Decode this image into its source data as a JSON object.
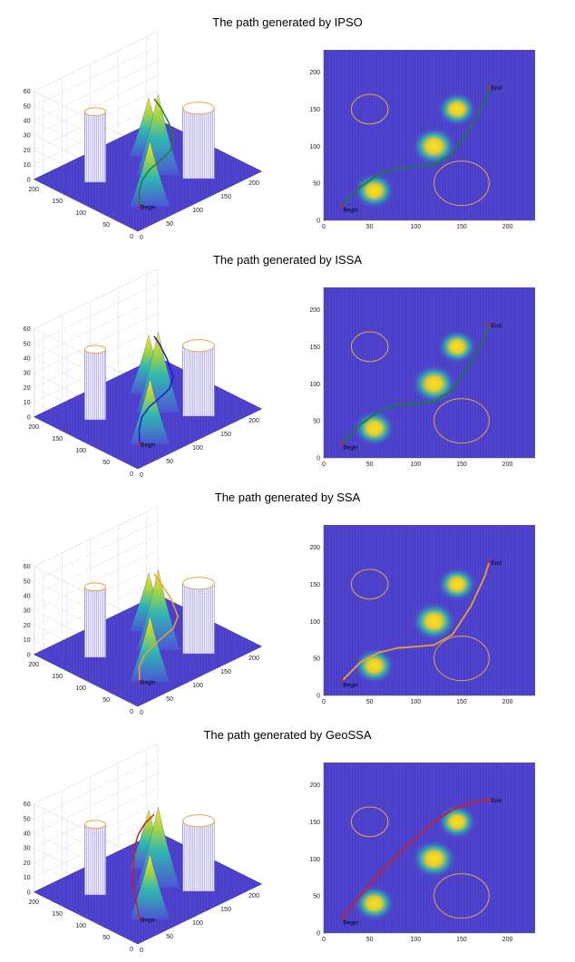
{
  "colors": {
    "background_low": "#4b3fc9",
    "peak_mid": "#2fb7b0",
    "peak_high": "#ffe21a",
    "threat_circle": "#e5a54a",
    "axis": "#555555",
    "grid": "#dcdcdc"
  },
  "chart_data": [
    {
      "title": "The path generated by IPSO",
      "type": "path-planning",
      "view2d": {
        "xlim": [
          0,
          230
        ],
        "ylim": [
          0,
          230
        ],
        "xticks": [
          0,
          50,
          100,
          150,
          200
        ],
        "yticks": [
          0,
          50,
          100,
          150,
          200
        ]
      },
      "view3d": {
        "zticks": [
          0,
          10,
          20,
          30,
          40,
          50,
          60
        ],
        "xticks": [
          0,
          50,
          100,
          150,
          200
        ],
        "yticks": [
          0,
          50,
          100,
          150,
          200
        ]
      },
      "start": {
        "x": 20,
        "y": 20,
        "label": "Begin"
      },
      "end": {
        "x": 180,
        "y": 180,
        "label": "End"
      },
      "path_color": "#1e7d3a",
      "path_color_3d": "#1e7d3a",
      "path": [
        [
          20,
          20
        ],
        [
          40,
          45
        ],
        [
          60,
          62
        ],
        [
          80,
          70
        ],
        [
          100,
          72
        ],
        [
          120,
          75
        ],
        [
          140,
          90
        ],
        [
          160,
          125
        ],
        [
          175,
          160
        ],
        [
          180,
          180
        ]
      ]
    },
    {
      "title": "The path generated by ISSA",
      "type": "path-planning",
      "view2d": {
        "xlim": [
          0,
          230
        ],
        "ylim": [
          0,
          230
        ],
        "xticks": [
          0,
          50,
          100,
          150,
          200
        ],
        "yticks": [
          0,
          50,
          100,
          150,
          200
        ]
      },
      "view3d": {
        "zticks": [
          0,
          10,
          20,
          30,
          40,
          50,
          60
        ],
        "xticks": [
          0,
          50,
          100,
          150,
          200
        ],
        "yticks": [
          0,
          50,
          100,
          150,
          200
        ]
      },
      "start": {
        "x": 20,
        "y": 20,
        "label": "Begin"
      },
      "end": {
        "x": 180,
        "y": 180,
        "label": "End"
      },
      "path_color": "#1e7d3a",
      "path_color_3d": "#1a1acc",
      "path": [
        [
          20,
          20
        ],
        [
          40,
          45
        ],
        [
          60,
          63
        ],
        [
          80,
          71
        ],
        [
          100,
          73
        ],
        [
          120,
          76
        ],
        [
          140,
          92
        ],
        [
          160,
          128
        ],
        [
          175,
          162
        ],
        [
          180,
          180
        ]
      ]
    },
    {
      "title": "The path generated by SSA",
      "type": "path-planning",
      "view2d": {
        "xlim": [
          0,
          230
        ],
        "ylim": [
          0,
          230
        ],
        "xticks": [
          0,
          50,
          100,
          150,
          200
        ],
        "yticks": [
          0,
          50,
          100,
          150,
          200
        ]
      },
      "view3d": {
        "zticks": [
          0,
          10,
          20,
          30,
          40,
          50,
          60
        ],
        "xticks": [
          0,
          50,
          100,
          150,
          200
        ],
        "yticks": [
          0,
          50,
          100,
          150,
          200
        ]
      },
      "start": {
        "x": 20,
        "y": 20,
        "label": "Begin"
      },
      "end": {
        "x": 180,
        "y": 180,
        "label": "End"
      },
      "path_color": "#f0a030",
      "path_color_3d": "#f0a030",
      "path": [
        [
          20,
          20
        ],
        [
          40,
          45
        ],
        [
          60,
          58
        ],
        [
          80,
          64
        ],
        [
          100,
          66
        ],
        [
          120,
          68
        ],
        [
          140,
          82
        ],
        [
          160,
          120
        ],
        [
          175,
          160
        ],
        [
          180,
          180
        ]
      ]
    },
    {
      "title": "The path generated by GeoSSA",
      "type": "path-planning",
      "view2d": {
        "xlim": [
          0,
          230
        ],
        "ylim": [
          0,
          230
        ],
        "xticks": [
          0,
          50,
          100,
          150,
          200
        ],
        "yticks": [
          0,
          50,
          100,
          150,
          200
        ]
      },
      "view3d": {
        "zticks": [
          0,
          10,
          20,
          30,
          40,
          50,
          60
        ],
        "xticks": [
          0,
          50,
          100,
          150,
          200
        ],
        "yticks": [
          0,
          50,
          100,
          150,
          200
        ]
      },
      "start": {
        "x": 20,
        "y": 20,
        "label": "Begin"
      },
      "end": {
        "x": 180,
        "y": 180,
        "label": "End"
      },
      "path_color": "#d21e1e",
      "path_color_3d": "#d21e1e",
      "path": [
        [
          20,
          20
        ],
        [
          40,
          50
        ],
        [
          60,
          80
        ],
        [
          80,
          105
        ],
        [
          100,
          128
        ],
        [
          120,
          150
        ],
        [
          140,
          166
        ],
        [
          160,
          176
        ],
        [
          180,
          180
        ]
      ]
    }
  ],
  "environment": {
    "peaks": [
      {
        "x": 55,
        "y": 40,
        "height": 45
      },
      {
        "x": 120,
        "y": 100,
        "height": 55
      },
      {
        "x": 145,
        "y": 150,
        "height": 40
      }
    ],
    "threats": [
      {
        "x": 50,
        "y": 150,
        "r": 20
      },
      {
        "x": 150,
        "y": 50,
        "r": 30
      }
    ]
  }
}
